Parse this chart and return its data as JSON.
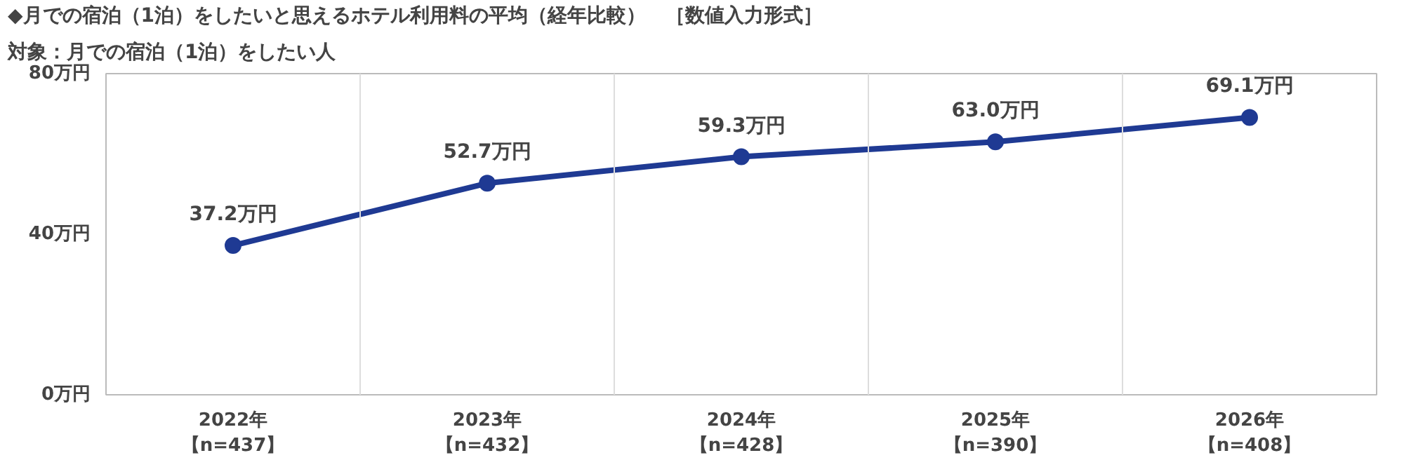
{
  "chart_data": {
    "type": "line",
    "title": "◆月での宿泊（1泊）をしたいと思えるホテル利用料の平均（経年比較）　［数値入力形式］",
    "subtitle": "対象：月での宿泊（1泊）をしたい人",
    "categories": [
      "2022年【n=437】",
      "2023年【n=432】",
      "2024年【n=428】",
      "2025年【n=390】",
      "2026年【n=408】"
    ],
    "series": [
      {
        "color": "#1f3a93",
        "values": [
          37.2,
          52.7,
          59.3,
          63.0,
          69.1
        ],
        "value_labels": [
          "37.2万円",
          "52.7万円",
          "59.3万円",
          "63.0万円",
          "69.1万円"
        ]
      }
    ],
    "ylim": [
      0,
      80
    ],
    "yticks": [
      {
        "value": 0,
        "label": "0万円"
      },
      {
        "value": 40,
        "label": "40万円"
      },
      {
        "value": 80,
        "label": "80万円"
      }
    ],
    "grid": "x",
    "marker": "circle",
    "line_style": "solid"
  }
}
